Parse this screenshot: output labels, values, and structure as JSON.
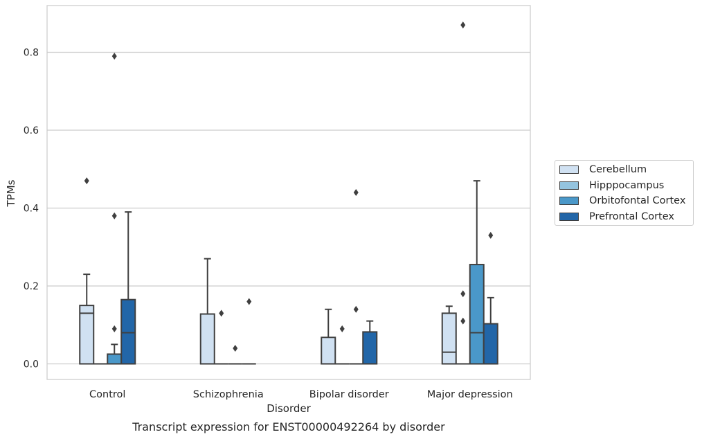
{
  "chart_data": {
    "type": "box",
    "title": "Transcript expression for ENST00000492264 by disorder",
    "xlabel": "Disorder",
    "ylabel": "TPMs",
    "ylim": [
      -0.04,
      0.92
    ],
    "yticks": [
      "0.0",
      "0.2",
      "0.4",
      "0.6",
      "0.8"
    ],
    "grid": "horizontal",
    "legend_position": "right",
    "categories": [
      "Control",
      "Schizophrenia",
      "Bipolar disorder",
      "Major depression"
    ],
    "series": [
      {
        "name": "Cerebellum",
        "color": "#d0e1f2",
        "boxes": [
          {
            "q1": 0,
            "median": 0.13,
            "q3": 0.15,
            "whisker_low": 0,
            "whisker_high": 0.23,
            "outliers": [
              0.47
            ]
          },
          {
            "q1": 0,
            "median": 0,
            "q3": 0.128,
            "whisker_low": 0,
            "whisker_high": 0.27,
            "outliers": []
          },
          {
            "q1": 0,
            "median": 0,
            "q3": 0.068,
            "whisker_low": 0,
            "whisker_high": 0.14,
            "outliers": []
          },
          {
            "q1": 0,
            "median": 0.03,
            "q3": 0.13,
            "whisker_low": 0,
            "whisker_high": 0.148,
            "outliers": []
          }
        ]
      },
      {
        "name": "Hipppocampus",
        "color": "#94c4df",
        "boxes": [
          {
            "q1": 0,
            "median": 0,
            "q3": 0,
            "whisker_low": 0,
            "whisker_high": 0,
            "outliers": []
          },
          {
            "q1": 0,
            "median": 0,
            "q3": 0,
            "whisker_low": 0,
            "whisker_high": 0,
            "outliers": [
              0.13
            ]
          },
          {
            "q1": 0,
            "median": 0,
            "q3": 0,
            "whisker_low": 0,
            "whisker_high": 0,
            "outliers": [
              0.09
            ]
          },
          {
            "q1": 0,
            "median": 0,
            "q3": 0,
            "whisker_low": 0,
            "whisker_high": 0,
            "outliers": [
              0.11,
              0.18,
              0.87
            ]
          }
        ]
      },
      {
        "name": "Orbitofontal Cortex",
        "color": "#4a98c9",
        "boxes": [
          {
            "q1": 0,
            "median": 0,
            "q3": 0.025,
            "whisker_low": 0,
            "whisker_high": 0.05,
            "outliers": [
              0.09,
              0.38,
              0.79
            ]
          },
          {
            "q1": 0,
            "median": 0,
            "q3": 0,
            "whisker_low": 0,
            "whisker_high": 0,
            "outliers": [
              0.04
            ]
          },
          {
            "q1": 0,
            "median": 0,
            "q3": 0,
            "whisker_low": 0,
            "whisker_high": 0,
            "outliers": [
              0.14,
              0.44
            ]
          },
          {
            "q1": 0,
            "median": 0.08,
            "q3": 0.255,
            "whisker_low": 0,
            "whisker_high": 0.47,
            "outliers": []
          }
        ]
      },
      {
        "name": "Prefrontal Cortex",
        "color": "#2266a8",
        "boxes": [
          {
            "q1": 0,
            "median": 0.08,
            "q3": 0.165,
            "whisker_low": 0,
            "whisker_high": 0.39,
            "outliers": []
          },
          {
            "q1": 0,
            "median": 0,
            "q3": 0,
            "whisker_low": 0,
            "whisker_high": 0,
            "outliers": [
              0.16
            ]
          },
          {
            "q1": 0,
            "median": 0,
            "q3": 0.082,
            "whisker_low": 0,
            "whisker_high": 0.11,
            "outliers": []
          },
          {
            "q1": 0,
            "median": 0,
            "q3": 0.103,
            "whisker_low": 0,
            "whisker_high": 0.17,
            "outliers": [
              0.33
            ]
          }
        ]
      }
    ]
  }
}
